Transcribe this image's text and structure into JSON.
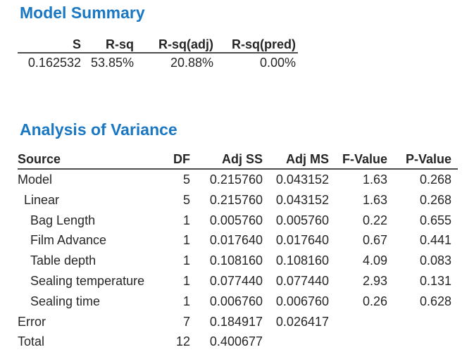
{
  "colors": {
    "title_blue": "#1a77c2",
    "text": "#262626",
    "rule": "#4d4d4d",
    "background": "#ffffff"
  },
  "model_summary": {
    "title": "Model Summary",
    "columns": [
      "S",
      "R-sq",
      "R-sq(adj)",
      "R-sq(pred)"
    ],
    "values": [
      "0.162532",
      "53.85%",
      "20.88%",
      "0.00%"
    ]
  },
  "anova": {
    "title": "Analysis of Variance",
    "columns": [
      "Source",
      "DF",
      "Adj SS",
      "Adj MS",
      "F-Value",
      "P-Value"
    ],
    "rows": [
      {
        "source": "Model",
        "indent": 0,
        "df": "5",
        "adj_ss": "0.215760",
        "adj_ms": "0.043152",
        "f": "1.63",
        "p": "0.268"
      },
      {
        "source": "Linear",
        "indent": 1,
        "df": "5",
        "adj_ss": "0.215760",
        "adj_ms": "0.043152",
        "f": "1.63",
        "p": "0.268"
      },
      {
        "source": "Bag Length",
        "indent": 2,
        "df": "1",
        "adj_ss": "0.005760",
        "adj_ms": "0.005760",
        "f": "0.22",
        "p": "0.655"
      },
      {
        "source": "Film Advance",
        "indent": 2,
        "df": "1",
        "adj_ss": "0.017640",
        "adj_ms": "0.017640",
        "f": "0.67",
        "p": "0.441"
      },
      {
        "source": "Table depth",
        "indent": 2,
        "df": "1",
        "adj_ss": "0.108160",
        "adj_ms": "0.108160",
        "f": "4.09",
        "p": "0.083"
      },
      {
        "source": "Sealing temperature",
        "indent": 2,
        "df": "1",
        "adj_ss": "0.077440",
        "adj_ms": "0.077440",
        "f": "2.93",
        "p": "0.131"
      },
      {
        "source": "Sealing time",
        "indent": 2,
        "df": "1",
        "adj_ss": "0.006760",
        "adj_ms": "0.006760",
        "f": "0.26",
        "p": "0.628"
      },
      {
        "source": "Error",
        "indent": 0,
        "df": "7",
        "adj_ss": "0.184917",
        "adj_ms": "0.026417",
        "f": "",
        "p": ""
      },
      {
        "source": "Total",
        "indent": 0,
        "df": "12",
        "adj_ss": "0.400677",
        "adj_ms": "",
        "f": "",
        "p": ""
      }
    ]
  }
}
